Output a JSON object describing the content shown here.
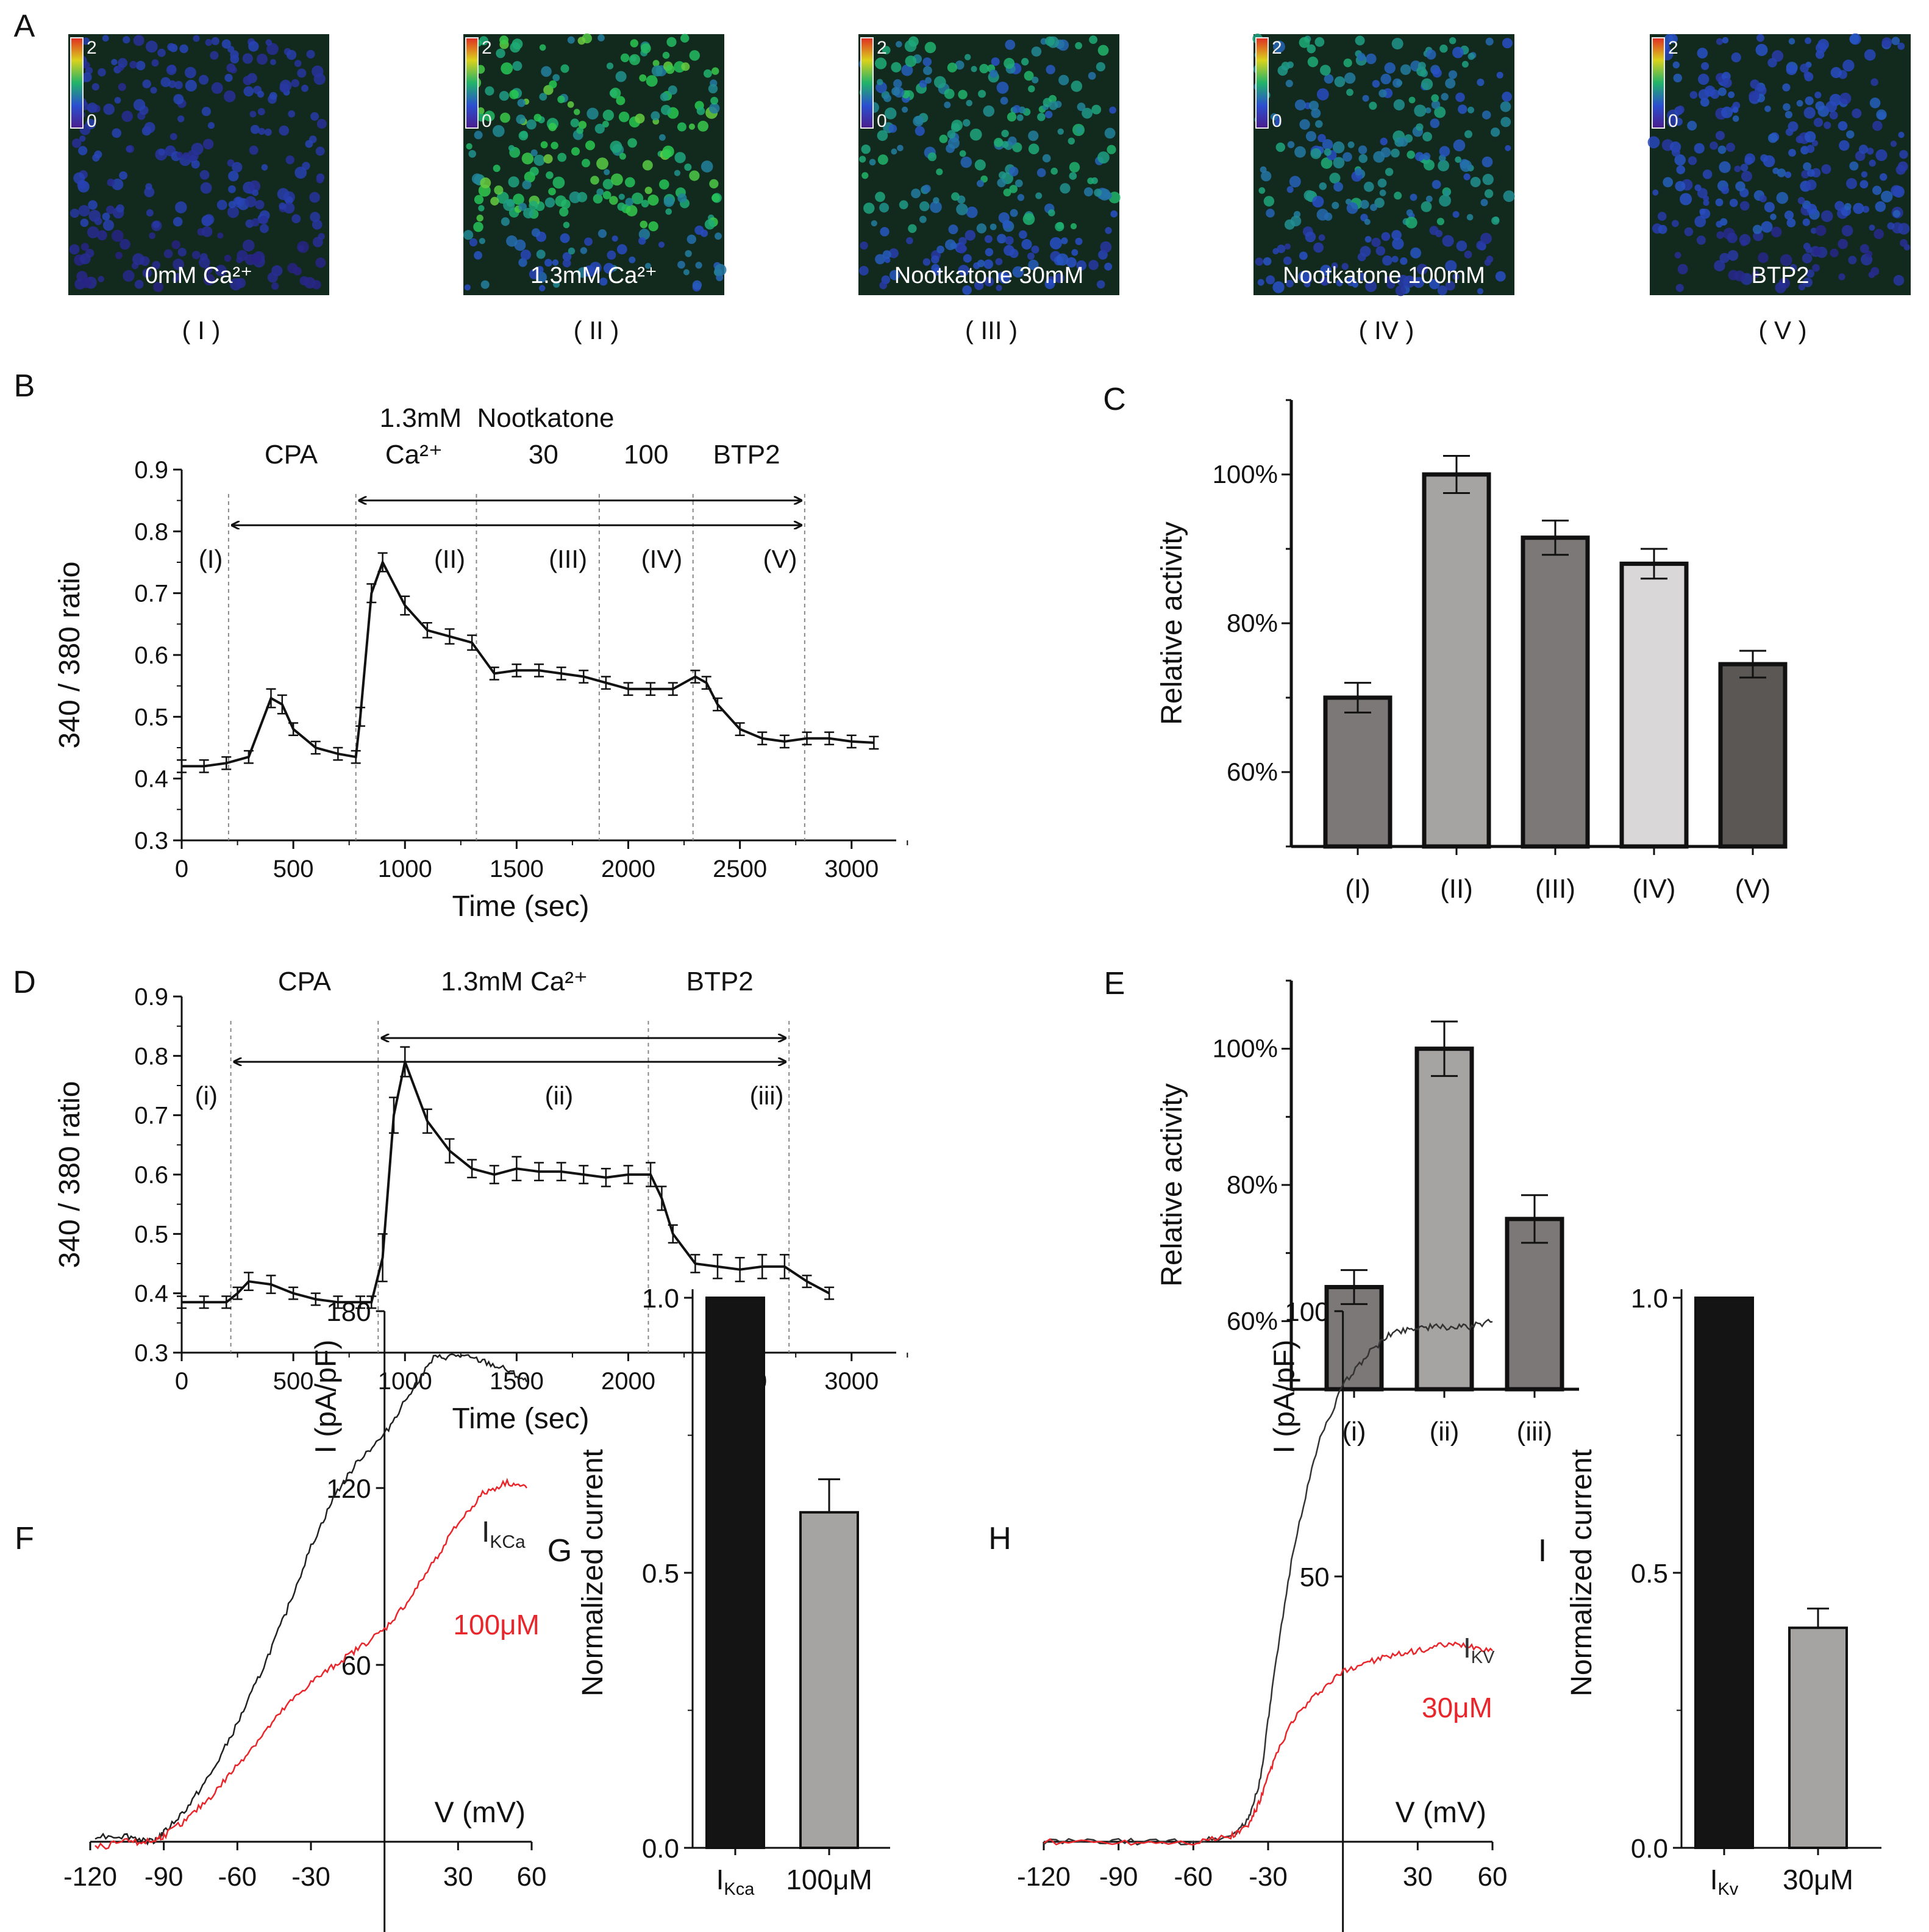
{
  "panel_letters": {
    "A": "A",
    "B": "B",
    "C": "C",
    "D": "D",
    "E": "E",
    "F": "F",
    "G": "G",
    "H": "H",
    "I": "I"
  },
  "colors": {
    "ink": "#111111",
    "red": "#e8262b",
    "gray_dash": "#888888",
    "bar_dark": "#141414",
    "bar_mid": "#7b7877",
    "bar_light": "#a6a3a3",
    "bar_pale": "#d9d7d7",
    "bar_darkest": "#5a5755"
  },
  "images": [
    {
      "caption": "0mM Ca²⁺",
      "roman": "( I )",
      "scale_top": "2",
      "scale_bottom": "0",
      "level": 0.22
    },
    {
      "caption": "1.3mM Ca²⁺",
      "roman": "( II )",
      "scale_top": "2",
      "scale_bottom": "0",
      "level": 0.75
    },
    {
      "caption": "Nootkatone 30mM",
      "roman": "( III )",
      "scale_top": "2",
      "scale_bottom": "0",
      "level": 0.55
    },
    {
      "caption": "Nootkatone 100mM",
      "roman": "( IV )",
      "scale_top": "2",
      "scale_bottom": "0",
      "level": 0.5
    },
    {
      "caption": "BTP2",
      "roman": "( V )",
      "scale_top": "2",
      "scale_bottom": "0",
      "level": 0.3
    }
  ],
  "chart_data": [
    {
      "id": "B",
      "type": "line",
      "title": "",
      "xlabel": "Time (sec)",
      "ylabel": "340 / 380 ratio",
      "xlim": [
        0,
        3200
      ],
      "ylim": [
        0.3,
        0.9
      ],
      "xticks": [
        0,
        500,
        1000,
        1500,
        2000,
        2500,
        3000
      ],
      "yticks": [
        0.3,
        0.4,
        0.5,
        0.6,
        0.7,
        0.8,
        0.9
      ],
      "x": [
        0,
        100,
        200,
        300,
        400,
        450,
        500,
        600,
        700,
        780,
        800,
        850,
        900,
        1000,
        1100,
        1200,
        1300,
        1400,
        1500,
        1600,
        1700,
        1800,
        1900,
        2000,
        2100,
        2200,
        2300,
        2350,
        2400,
        2500,
        2600,
        2700,
        2800,
        2900,
        3000,
        3100
      ],
      "y": [
        0.42,
        0.42,
        0.425,
        0.435,
        0.53,
        0.52,
        0.48,
        0.45,
        0.44,
        0.435,
        0.5,
        0.7,
        0.75,
        0.68,
        0.64,
        0.63,
        0.62,
        0.57,
        0.575,
        0.575,
        0.57,
        0.565,
        0.555,
        0.545,
        0.545,
        0.545,
        0.565,
        0.555,
        0.52,
        0.48,
        0.465,
        0.46,
        0.465,
        0.465,
        0.46,
        0.458
      ],
      "sem": [
        0.01,
        0.01,
        0.01,
        0.01,
        0.015,
        0.015,
        0.01,
        0.01,
        0.01,
        0.01,
        0.015,
        0.015,
        0.015,
        0.015,
        0.012,
        0.012,
        0.012,
        0.01,
        0.01,
        0.01,
        0.01,
        0.01,
        0.01,
        0.01,
        0.01,
        0.01,
        0.01,
        0.01,
        0.01,
        0.01,
        0.01,
        0.01,
        0.01,
        0.01,
        0.01,
        0.01
      ],
      "vlines": [
        210,
        780,
        1320,
        1870,
        2290,
        2790
      ],
      "arrows": [
        {
          "from": 210,
          "to": 2790,
          "y": 0.81
        },
        {
          "from": 780,
          "to": 2790,
          "y": 0.85
        }
      ],
      "regions": [
        {
          "label": "(I)",
          "x": 130
        },
        {
          "label": "(II)",
          "x": 1200
        },
        {
          "label": "(III)",
          "x": 1730
        },
        {
          "label": "(IV)",
          "x": 2150
        },
        {
          "label": "(V)",
          "x": 2680
        }
      ],
      "headers": [
        {
          "label": "CPA",
          "x": 490,
          "row": 2
        },
        {
          "label": "1.3mM",
          "x": 1070,
          "row": 1
        },
        {
          "label": "Ca²⁺",
          "x": 1040,
          "row": 2
        },
        {
          "label": "Nootkatone",
          "x": 1630,
          "row": 1
        },
        {
          "label": "30",
          "x": 1620,
          "row": 2
        },
        {
          "label": "100",
          "x": 2080,
          "row": 2
        },
        {
          "label": "BTP2",
          "x": 2530,
          "row": 2
        }
      ]
    },
    {
      "id": "D",
      "type": "line",
      "title": "",
      "xlabel": "Time (sec)",
      "ylabel": "340 / 380 ratio",
      "xlim": [
        0,
        3200
      ],
      "ylim": [
        0.3,
        0.9
      ],
      "xticks": [
        0,
        500,
        1000,
        1500,
        2000,
        2500,
        3000
      ],
      "yticks": [
        0.3,
        0.4,
        0.5,
        0.6,
        0.7,
        0.8,
        0.9
      ],
      "x": [
        0,
        100,
        200,
        250,
        300,
        400,
        500,
        600,
        700,
        800,
        850,
        900,
        950,
        1000,
        1100,
        1200,
        1300,
        1400,
        1500,
        1600,
        1700,
        1800,
        1900,
        2000,
        2100,
        2150,
        2200,
        2300,
        2400,
        2500,
        2600,
        2700,
        2800,
        2900
      ],
      "y": [
        0.385,
        0.385,
        0.385,
        0.4,
        0.42,
        0.415,
        0.4,
        0.39,
        0.385,
        0.385,
        0.385,
        0.46,
        0.7,
        0.79,
        0.69,
        0.64,
        0.61,
        0.6,
        0.61,
        0.605,
        0.605,
        0.6,
        0.595,
        0.6,
        0.6,
        0.56,
        0.5,
        0.45,
        0.445,
        0.44,
        0.445,
        0.445,
        0.42,
        0.4
      ],
      "sem": [
        0.01,
        0.01,
        0.01,
        0.01,
        0.015,
        0.015,
        0.01,
        0.01,
        0.01,
        0.01,
        0.01,
        0.04,
        0.03,
        0.025,
        0.02,
        0.02,
        0.015,
        0.015,
        0.02,
        0.015,
        0.015,
        0.015,
        0.015,
        0.015,
        0.02,
        0.02,
        0.015,
        0.015,
        0.02,
        0.02,
        0.02,
        0.02,
        0.01,
        0.01
      ],
      "vlines": [
        220,
        880,
        2090,
        2720
      ],
      "arrows": [
        {
          "from": 220,
          "to": 2720,
          "y": 0.79
        },
        {
          "from": 880,
          "to": 2720,
          "y": 0.83
        }
      ],
      "regions": [
        {
          "label": "(i)",
          "x": 110
        },
        {
          "label": "(ii)",
          "x": 1690
        },
        {
          "label": "(iii)",
          "x": 2620
        }
      ],
      "headers": [
        {
          "label": "CPA",
          "x": 550,
          "row": 2
        },
        {
          "label": "1.3mM Ca²⁺",
          "x": 1490,
          "row": 2
        },
        {
          "label": "BTP2",
          "x": 2410,
          "row": 2
        }
      ]
    },
    {
      "id": "C",
      "type": "bar",
      "xlabel": "",
      "ylabel": "Relative activity",
      "ylim": [
        50,
        110
      ],
      "yticks": [
        60,
        80,
        100
      ],
      "ytick_labels": [
        "60%",
        "80%",
        "100%"
      ],
      "categories": [
        "(I)",
        "(II)",
        "(III)",
        "(IV)",
        "(V)"
      ],
      "values": [
        70,
        100,
        91.5,
        88,
        74.5
      ],
      "errors": [
        2,
        2.5,
        2.3,
        2,
        1.8
      ],
      "fills": [
        "#7b7877",
        "#a6a3a3",
        "#7b7877",
        "#d9d7d7",
        "#5a5755"
      ]
    },
    {
      "id": "E",
      "type": "bar",
      "xlabel": "",
      "ylabel": "Relative activity",
      "ylim": [
        50,
        110
      ],
      "yticks": [
        60,
        80,
        100
      ],
      "ytick_labels": [
        "60%",
        "80%",
        "100%"
      ],
      "categories": [
        "(i)",
        "(ii)",
        "(iii)"
      ],
      "values": [
        65,
        100,
        75
      ],
      "errors": [
        2.5,
        4,
        3.5
      ],
      "fills": [
        "#7b7877",
        "#a6a3a3",
        "#7b7877"
      ]
    },
    {
      "id": "F",
      "type": "line",
      "xlabel": "V (mV)",
      "ylabel": "I (pA/pF)",
      "xlim": [
        -120,
        60
      ],
      "ylim": [
        0,
        180
      ],
      "xticks": [
        -120,
        -90,
        -60,
        -30,
        30,
        60
      ],
      "yticks": [
        60,
        120,
        180
      ],
      "series": [
        {
          "name": "IKCa",
          "name_main": "I",
          "name_sub": "KCa",
          "color": "#222222",
          "x": [
            -118,
            -105,
            -95,
            -90,
            -80,
            -70,
            -60,
            -50,
            -40,
            -30,
            -20,
            -10,
            0,
            10,
            20,
            30,
            40,
            50,
            58
          ],
          "y": [
            2,
            2,
            0,
            3,
            12,
            24,
            40,
            58,
            78,
            100,
            118,
            130,
            138,
            152,
            164,
            165,
            163,
            160,
            156
          ]
        },
        {
          "name": "100μM",
          "color": "#e8262b",
          "x": [
            -118,
            -105,
            -95,
            -90,
            -80,
            -70,
            -60,
            -50,
            -40,
            -30,
            -20,
            -10,
            0,
            10,
            20,
            30,
            40,
            50,
            58
          ],
          "y": [
            -2,
            0,
            0,
            2,
            8,
            16,
            26,
            36,
            46,
            54,
            60,
            66,
            72,
            82,
            95,
            108,
            118,
            122,
            120
          ]
        }
      ]
    },
    {
      "id": "G",
      "type": "bar",
      "ylabel": "Normalized current",
      "ylim": [
        0,
        1.0
      ],
      "yticks": [
        0,
        0.5,
        1.0
      ],
      "ytick_labels": [
        "0.0",
        "0.5",
        "1.0"
      ],
      "categories": [
        "IKca",
        "100μM"
      ],
      "category_main": [
        "I",
        ""
      ],
      "category_sub": [
        "Kca",
        ""
      ],
      "category_plain": [
        "",
        "100μM"
      ],
      "values": [
        1.0,
        0.61
      ],
      "errors": [
        0,
        0.06
      ],
      "fills": [
        "#141414",
        "#a6a3a3"
      ]
    },
    {
      "id": "H",
      "type": "line",
      "xlabel": "V (mV)",
      "ylabel": "I (pA/pF)",
      "xlim": [
        -120,
        60
      ],
      "ylim": [
        0,
        100
      ],
      "xticks": [
        -120,
        -90,
        -60,
        -30,
        30,
        60
      ],
      "yticks": [
        50,
        100
      ],
      "series": [
        {
          "name": "IKV",
          "name_main": "I",
          "name_sub": "KV",
          "color": "#333333",
          "x": [
            -120,
            -90,
            -60,
            -45,
            -38,
            -33,
            -28,
            -20,
            -10,
            0,
            10,
            20,
            30,
            40,
            50,
            60
          ],
          "y": [
            0,
            0,
            0,
            1,
            4,
            12,
            30,
            55,
            75,
            86,
            92,
            96,
            97,
            97,
            97,
            98
          ]
        },
        {
          "name": "30μM",
          "color": "#e8262b",
          "x": [
            -120,
            -90,
            -60,
            -45,
            -38,
            -33,
            -28,
            -20,
            -10,
            0,
            10,
            20,
            30,
            40,
            50,
            60
          ],
          "y": [
            0,
            0,
            0,
            1,
            3,
            8,
            15,
            23,
            28,
            32,
            34,
            35,
            36,
            37,
            37,
            36
          ]
        }
      ]
    },
    {
      "id": "I",
      "type": "bar",
      "ylabel": "Normalized current",
      "ylim": [
        0,
        1.0
      ],
      "yticks": [
        0,
        0.5,
        1.0
      ],
      "ytick_labels": [
        "0.0",
        "0.5",
        "1.0"
      ],
      "categories": [
        "IKv",
        "30μM"
      ],
      "category_main": [
        "I",
        ""
      ],
      "category_sub": [
        "Kv",
        ""
      ],
      "category_plain": [
        "",
        "30μM"
      ],
      "values": [
        1.0,
        0.4
      ],
      "errors": [
        0,
        0.035
      ],
      "fills": [
        "#141414",
        "#a6a3a3"
      ]
    }
  ]
}
